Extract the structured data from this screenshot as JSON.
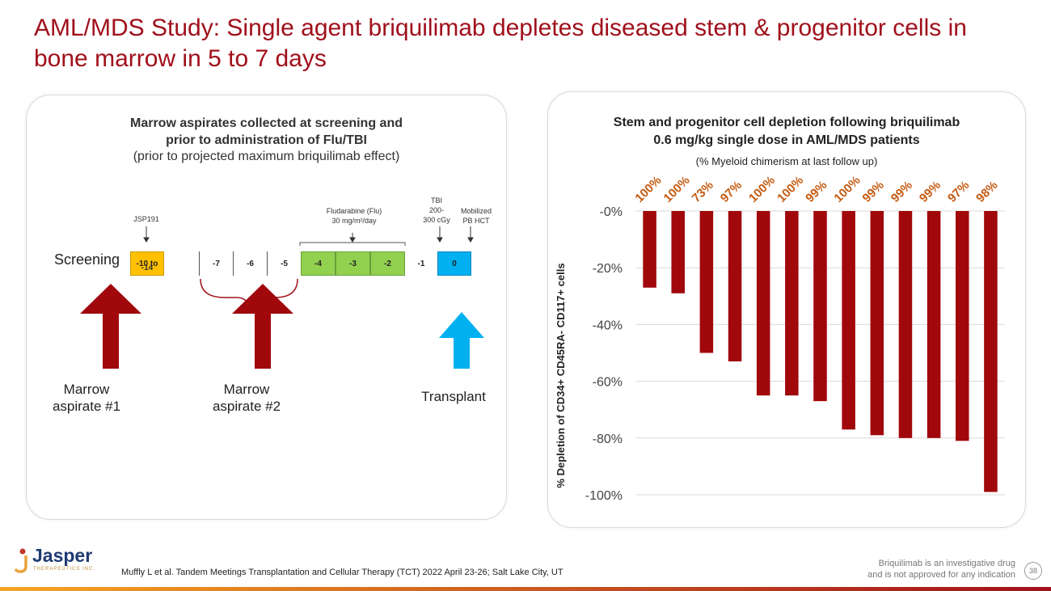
{
  "title": "AML/MDS Study: Single agent briquilimab depletes diseased stem & progenitor cells in bone marrow in 5 to 7 days",
  "left_panel": {
    "heading_line1": "Marrow aspirates collected at screening and",
    "heading_line2": "prior to administration of Flu/TBI",
    "subheading": "(prior to projected maximum briquilimab effect)",
    "screening_label": "Screening",
    "annotations": {
      "jsp191": "JSP191",
      "flu_line1": "Fludarabine (Flu)",
      "flu_line2": "30 mg/m²/day",
      "tbi_line1": "TBI",
      "tbi_line2": "200-",
      "tbi_line3": "300 cGy",
      "hct_line1": "Mobilized",
      "hct_line2": "PB HCT"
    },
    "days": {
      "screen_line1": "-10 to",
      "screen_line2": "-14",
      "d7": "-7",
      "d6": "-6",
      "d5": "-5",
      "d4": "-4",
      "d3": "-3",
      "d2": "-2",
      "d1": "-1",
      "d0": "0"
    },
    "arrows": {
      "a1_line1": "Marrow",
      "a1_line2": "aspirate #1",
      "a2_line1": "Marrow",
      "a2_line2": "aspirate #2",
      "a3": "Transplant"
    },
    "colors": {
      "screening": "#ffc000",
      "flu": "#92d050",
      "transplant": "#00b0f0",
      "aspirate_arrow": "#a0101b",
      "transplant_arrow": "#00b0f0"
    }
  },
  "chart_data": {
    "type": "bar",
    "title_line1": "Stem and progenitor cell depletion following briquilimab",
    "title_line2": "0.6 mg/kg single dose in AML/MDS patients",
    "subtitle": "(% Myeloid  chimerism at last follow up)",
    "ylabel": "% Depletion of CD34+ CD45RA- CD117+ cells",
    "xlabel": "",
    "ylim": [
      -100,
      0
    ],
    "yticks": [
      0,
      -20,
      -40,
      -60,
      -80,
      -100
    ],
    "ytick_labels": [
      "-0%",
      "-20%",
      "-40%",
      "-60%",
      "-80%",
      "-100%"
    ],
    "values": [
      -27,
      -29,
      -50,
      -53,
      -65,
      -65,
      -67,
      -77,
      -79,
      -80,
      -80,
      -81,
      -99
    ],
    "chimerism_labels": [
      "100%",
      "100%",
      "73%",
      "97%",
      "100%",
      "100%",
      "99%",
      "100%",
      "99%",
      "99%",
      "99%",
      "97%",
      "98%"
    ],
    "bar_color": "#a0080c",
    "label_color": "#c55a11",
    "grid": true
  },
  "footer": {
    "reference": "Muffly L et al. Tandem Meetings Transplantation and Cellular Therapy (TCT) 2022 April 23-26; Salt Lake City, UT",
    "disclaimer_line1": "Briquilimab  is an investigative drug",
    "disclaimer_line2": "and is not approved for any indication",
    "page_number": "38",
    "logo_name": "Jasper",
    "logo_sub": "THERAPEUTICS INC."
  }
}
